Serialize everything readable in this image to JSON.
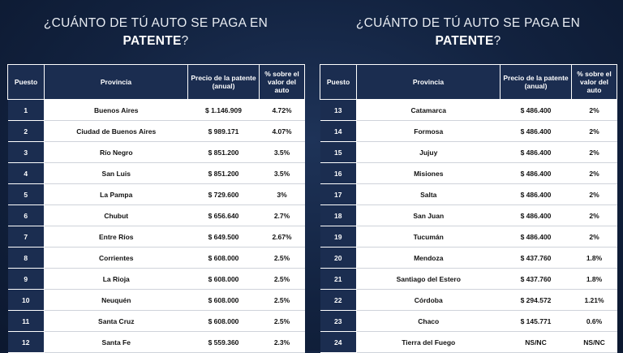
{
  "heading": {
    "line1": "¿CUÁNTO DE TÚ AUTO SE PAGA EN",
    "line2_strong": "PATENTE",
    "line2_rest": "?"
  },
  "columns": {
    "rank": "Puesto",
    "province": "Provincia",
    "price": "Precio de la patente (anual)",
    "percent": "% sobre el valor del auto"
  },
  "left_rows": [
    {
      "rank": "1",
      "province": "Buenos Aires",
      "price": "$ 1.146.909",
      "percent": "4.72%"
    },
    {
      "rank": "2",
      "province": "Ciudad de Buenos Aires",
      "price": "$ 989.171",
      "percent": "4.07%"
    },
    {
      "rank": "3",
      "province": "Río Negro",
      "price": "$ 851.200",
      "percent": "3.5%"
    },
    {
      "rank": "4",
      "province": "San Luis",
      "price": "$ 851.200",
      "percent": "3.5%"
    },
    {
      "rank": "5",
      "province": "La Pampa",
      "price": "$ 729.600",
      "percent": "3%"
    },
    {
      "rank": "6",
      "province": "Chubut",
      "price": "$ 656.640",
      "percent": "2.7%"
    },
    {
      "rank": "7",
      "province": "Entre Ríos",
      "price": "$ 649.500",
      "percent": "2.67%"
    },
    {
      "rank": "8",
      "province": "Corrientes",
      "price": "$ 608.000",
      "percent": "2.5%"
    },
    {
      "rank": "9",
      "province": "La Rioja",
      "price": "$ 608.000",
      "percent": "2.5%"
    },
    {
      "rank": "10",
      "province": "Neuquén",
      "price": "$ 608.000",
      "percent": "2.5%"
    },
    {
      "rank": "11",
      "province": "Santa Cruz",
      "price": "$ 608.000",
      "percent": "2.5%"
    },
    {
      "rank": "12",
      "province": "Santa Fe",
      "price": "$ 559.360",
      "percent": "2.3%"
    }
  ],
  "right_rows": [
    {
      "rank": "13",
      "province": "Catamarca",
      "price": "$ 486.400",
      "percent": "2%"
    },
    {
      "rank": "14",
      "province": "Formosa",
      "price": "$ 486.400",
      "percent": "2%"
    },
    {
      "rank": "15",
      "province": "Jujuy",
      "price": "$ 486.400",
      "percent": "2%"
    },
    {
      "rank": "16",
      "province": "Misiones",
      "price": "$ 486.400",
      "percent": "2%"
    },
    {
      "rank": "17",
      "province": "Salta",
      "price": "$ 486.400",
      "percent": "2%"
    },
    {
      "rank": "18",
      "province": "San Juan",
      "price": "$ 486.400",
      "percent": "2%"
    },
    {
      "rank": "19",
      "province": "Tucumán",
      "price": "$ 486.400",
      "percent": "2%"
    },
    {
      "rank": "20",
      "province": "Mendoza",
      "price": "$ 437.760",
      "percent": "1.8%"
    },
    {
      "rank": "21",
      "province": "Santiago del Estero",
      "price": "$ 437.760",
      "percent": "1.8%"
    },
    {
      "rank": "22",
      "province": "Córdoba",
      "price": "$ 294.572",
      "percent": "1.21%"
    },
    {
      "rank": "23",
      "province": "Chaco",
      "price": "$ 145.771",
      "percent": "0.6%"
    },
    {
      "rank": "24",
      "province": "Tierra del Fuego",
      "price": "NS/NC",
      "percent": "NS/NC"
    }
  ]
}
